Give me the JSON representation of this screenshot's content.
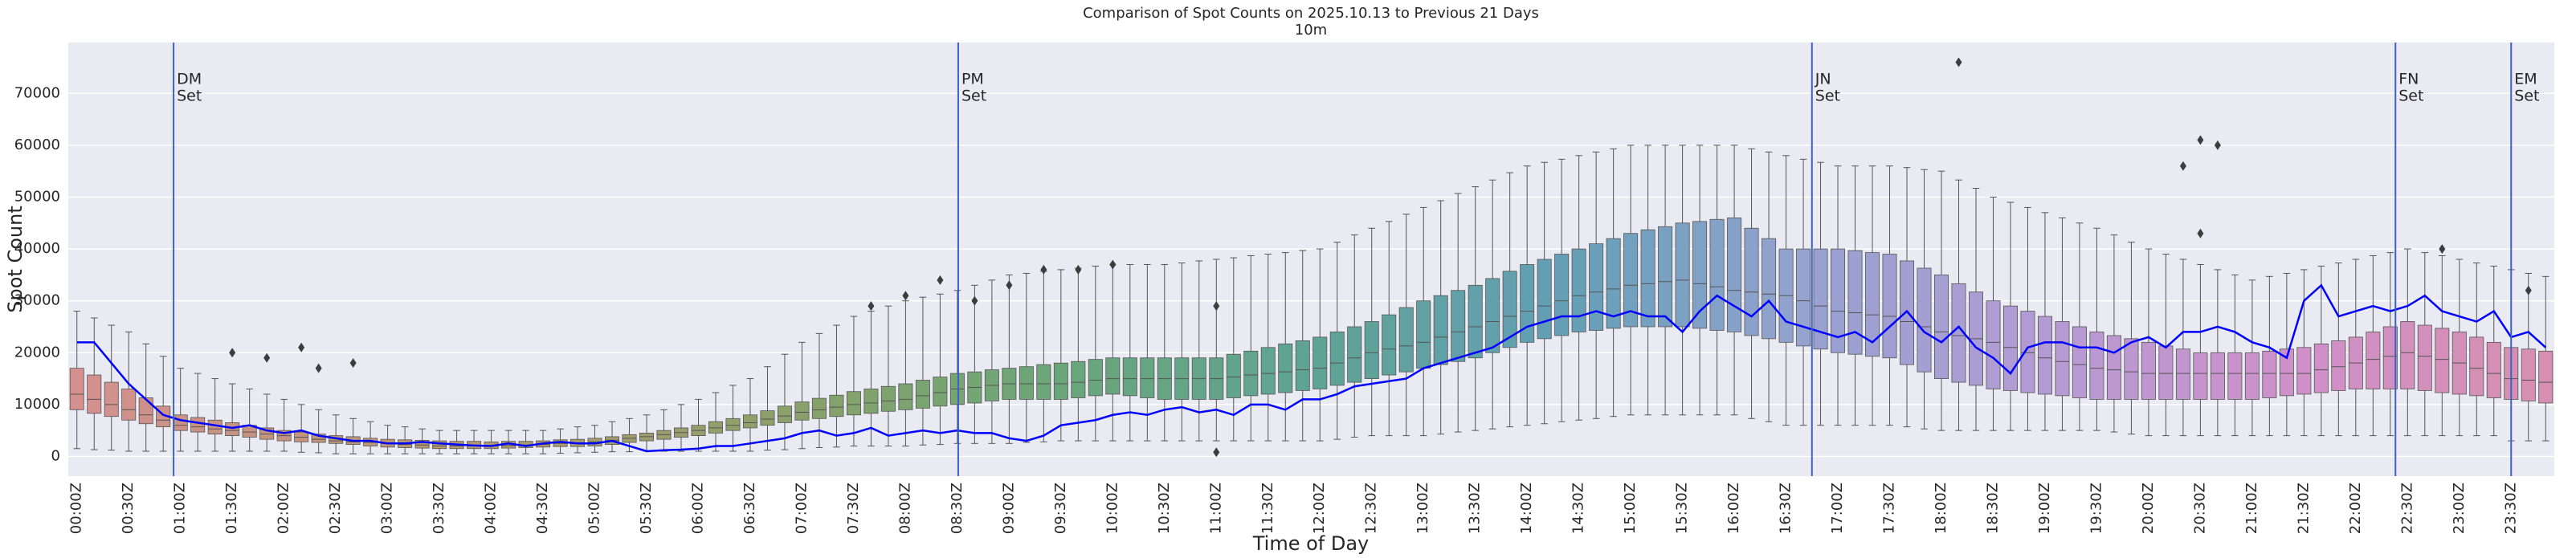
{
  "chart_data": {
    "type": "box",
    "title": "Comparison of Spot Counts on 2025.10.13 to Previous 21 Days",
    "subtitle": "10m",
    "x_label": "Time of Day",
    "y_label": "Spot Count",
    "categories": [
      "00:00Z",
      null,
      null,
      "00:30Z",
      null,
      null,
      "01:00Z",
      null,
      null,
      "01:30Z",
      null,
      null,
      "02:00Z",
      null,
      null,
      "02:30Z",
      null,
      null,
      "03:00Z",
      null,
      null,
      "03:30Z",
      null,
      null,
      "04:00Z",
      null,
      null,
      "04:30Z",
      null,
      null,
      "05:00Z",
      null,
      null,
      "05:30Z",
      null,
      null,
      "06:00Z",
      null,
      null,
      "06:30Z",
      null,
      null,
      "07:00Z",
      null,
      null,
      "07:30Z",
      null,
      null,
      "08:00Z",
      null,
      null,
      "08:30Z",
      null,
      null,
      "09:00Z",
      null,
      null,
      "09:30Z",
      null,
      null,
      "10:00Z",
      null,
      null,
      "10:30Z",
      null,
      null,
      "11:00Z",
      null,
      null,
      "11:30Z",
      null,
      null,
      "12:00Z",
      null,
      null,
      "12:30Z",
      null,
      null,
      "13:00Z",
      null,
      null,
      "13:30Z",
      null,
      null,
      "14:00Z",
      null,
      null,
      "14:30Z",
      null,
      null,
      "15:00Z",
      null,
      null,
      "15:30Z",
      null,
      null,
      "16:00Z",
      null,
      null,
      "16:30Z",
      null,
      null,
      "17:00Z",
      null,
      null,
      "17:30Z",
      null,
      null,
      "18:00Z",
      null,
      null,
      "18:30Z",
      null,
      null,
      "19:00Z",
      null,
      null,
      "19:30Z",
      null,
      null,
      "20:00Z",
      null,
      null,
      "20:30Z",
      null,
      null,
      "21:00Z",
      null,
      null,
      "21:30Z",
      null,
      null,
      "22:00Z",
      null,
      null,
      "22:30Z",
      null,
      null,
      "23:00Z",
      null,
      null,
      "23:30Z",
      null,
      null
    ],
    "boxes": {
      "palette": [
        "#d4908f",
        "#c0957a",
        "#a89a6e",
        "#86a26a",
        "#6aa67a",
        "#5fa393",
        "#639fb5",
        "#96a2d0",
        "#b59ad3",
        "#cf90c9",
        "#d68fb0"
      ],
      "whislo": [
        1500,
        1300,
        1200,
        1000,
        1000,
        1000,
        1000,
        1000,
        1000,
        1000,
        1000,
        1000,
        1000,
        800,
        700,
        500,
        500,
        500,
        500,
        500,
        500,
        500,
        500,
        500,
        500,
        500,
        500,
        500,
        600,
        700,
        800,
        900,
        900,
        1000,
        1000,
        1000,
        1000,
        1000,
        1000,
        1000,
        1200,
        1300,
        1500,
        1700,
        1800,
        2000,
        2000,
        2000,
        2000,
        2200,
        2300,
        2500,
        2500,
        2500,
        2500,
        2700,
        2800,
        3000,
        3000,
        3000,
        3000,
        3000,
        3000,
        3000,
        3000,
        3000,
        3000,
        3000,
        3000,
        3000,
        3000,
        3000,
        3000,
        3300,
        3700,
        4000,
        4000,
        4000,
        4000,
        4300,
        4700,
        5000,
        5300,
        5700,
        6000,
        6300,
        6700,
        7000,
        7300,
        7700,
        8000,
        8000,
        8000,
        8000,
        8000,
        8000,
        8000,
        7300,
        6700,
        6000,
        6000,
        6000,
        6000,
        6000,
        6000,
        6000,
        5700,
        5300,
        5000,
        5000,
        5000,
        5000,
        5000,
        5000,
        5000,
        5000,
        5000,
        5000,
        4700,
        4300,
        4000,
        4000,
        4000,
        4000,
        4000,
        4000,
        4000,
        4000,
        4000,
        4000,
        4000,
        4000,
        4000,
        4000,
        4000,
        4000,
        4000,
        4000,
        4000,
        4000,
        4000,
        3000,
        3000,
        3000
      ],
      "q1": [
        9000,
        8300,
        7700,
        7000,
        6300,
        5700,
        5000,
        4700,
        4300,
        4000,
        3700,
        3300,
        3000,
        2800,
        2700,
        2500,
        2300,
        2000,
        1800,
        1700,
        1600,
        1500,
        1500,
        1500,
        1500,
        1600,
        1700,
        1800,
        1900,
        1900,
        2000,
        2300,
        2700,
        3000,
        3300,
        3700,
        4000,
        4500,
        5000,
        5500,
        6000,
        6500,
        7000,
        7300,
        7700,
        8000,
        8300,
        8700,
        9000,
        9300,
        9700,
        10000,
        10300,
        10700,
        11000,
        11000,
        11000,
        11000,
        11300,
        11700,
        12000,
        11700,
        11300,
        11000,
        11000,
        11000,
        11000,
        11300,
        11700,
        12000,
        12300,
        12700,
        13000,
        13700,
        14300,
        15000,
        15700,
        16300,
        17000,
        17700,
        18300,
        19000,
        20000,
        21000,
        22000,
        22700,
        23300,
        24000,
        24300,
        24700,
        25000,
        25000,
        25000,
        25000,
        24700,
        24300,
        24000,
        23300,
        22700,
        22000,
        21300,
        20700,
        20000,
        19700,
        19300,
        19000,
        17700,
        16300,
        15000,
        14300,
        13700,
        13000,
        12700,
        12300,
        12000,
        11700,
        11300,
        11000,
        11000,
        11000,
        11000,
        11000,
        11000,
        11000,
        11000,
        11000,
        11000,
        11300,
        11700,
        12000,
        12300,
        12700,
        13000,
        13000,
        13000,
        13000,
        12700,
        12300,
        12000,
        11700,
        11300,
        11000,
        10700,
        10300
      ],
      "median": [
        12000,
        11000,
        10000,
        9000,
        8000,
        7000,
        6000,
        5700,
        5300,
        5000,
        4700,
        4300,
        4000,
        3700,
        3300,
        3000,
        2800,
        2700,
        2500,
        2300,
        2200,
        2000,
        2000,
        2000,
        2000,
        2100,
        2200,
        2300,
        2500,
        2600,
        2800,
        3100,
        3500,
        3800,
        4200,
        4600,
        5000,
        5500,
        6000,
        6500,
        7200,
        7800,
        8500,
        9000,
        9500,
        10000,
        10300,
        10700,
        11000,
        11700,
        12300,
        13000,
        13300,
        13700,
        14000,
        14000,
        14000,
        14000,
        14300,
        14700,
        15000,
        15000,
        15000,
        15000,
        15000,
        15000,
        15000,
        15300,
        15700,
        16000,
        16300,
        16700,
        17000,
        18000,
        19000,
        20000,
        20700,
        21300,
        22000,
        23000,
        24000,
        25000,
        26000,
        27000,
        28000,
        29000,
        30000,
        31000,
        31700,
        32300,
        33000,
        33300,
        33700,
        34000,
        33300,
        32700,
        32000,
        31700,
        31300,
        31000,
        30000,
        29000,
        28000,
        27700,
        27300,
        27000,
        26000,
        25000,
        24000,
        23300,
        22700,
        22000,
        21000,
        20000,
        19000,
        18300,
        17700,
        17000,
        16700,
        16300,
        16000,
        16000,
        16000,
        16000,
        16000,
        16000,
        16000,
        16000,
        16000,
        16000,
        16700,
        17300,
        18000,
        18700,
        19300,
        20000,
        19300,
        18700,
        18000,
        17000,
        16000,
        15000,
        14700,
        14300
      ],
      "q3": [
        17000,
        15700,
        14300,
        13000,
        11300,
        9700,
        8000,
        7500,
        7000,
        6500,
        6000,
        5500,
        5000,
        4700,
        4300,
        4000,
        3800,
        3500,
        3300,
        3200,
        3100,
        3000,
        2900,
        2900,
        2800,
        2900,
        2900,
        3000,
        3200,
        3300,
        3500,
        3800,
        4200,
        4500,
        5000,
        5500,
        6000,
        6700,
        7300,
        8000,
        8800,
        9700,
        10500,
        11200,
        11800,
        12500,
        13000,
        13500,
        14000,
        14700,
        15300,
        16000,
        16300,
        16700,
        17000,
        17300,
        17700,
        18000,
        18300,
        18700,
        19000,
        19000,
        19000,
        19000,
        19000,
        19000,
        19000,
        19700,
        20300,
        21000,
        21700,
        22300,
        23000,
        24000,
        25000,
        26000,
        27300,
        28700,
        30000,
        31000,
        32000,
        33000,
        34300,
        35700,
        37000,
        38000,
        39000,
        40000,
        41000,
        42000,
        43000,
        43700,
        44300,
        45000,
        45300,
        45700,
        46000,
        44000,
        42000,
        40000,
        40000,
        40000,
        40000,
        39700,
        39300,
        39000,
        37700,
        36300,
        35000,
        33300,
        31700,
        30000,
        29000,
        28000,
        27000,
        26000,
        25000,
        24000,
        23300,
        22700,
        22000,
        21300,
        20700,
        20000,
        20000,
        20000,
        20000,
        20300,
        20700,
        21000,
        21700,
        22300,
        23000,
        24000,
        25000,
        26000,
        25300,
        24700,
        24000,
        23000,
        22000,
        21000,
        20700,
        20300
      ],
      "whishi": [
        28000,
        26700,
        25300,
        24000,
        21700,
        19300,
        17000,
        16000,
        15000,
        14000,
        13000,
        12000,
        11000,
        10000,
        9000,
        8000,
        7300,
        6700,
        6000,
        5700,
        5300,
        5000,
        5000,
        5000,
        5000,
        5000,
        5000,
        5000,
        5300,
        5700,
        6000,
        6700,
        7300,
        8000,
        9000,
        10000,
        11000,
        12300,
        13700,
        15000,
        17300,
        19700,
        22000,
        23700,
        25300,
        27000,
        28000,
        29000,
        30000,
        30700,
        31300,
        32000,
        33000,
        34000,
        35000,
        35300,
        35700,
        36000,
        36300,
        36700,
        37000,
        37000,
        37000,
        37000,
        37300,
        37700,
        38000,
        38300,
        38700,
        39000,
        39300,
        39700,
        40000,
        41300,
        42700,
        44000,
        45300,
        46700,
        48000,
        49300,
        50700,
        52000,
        53300,
        54700,
        56000,
        56700,
        57300,
        58000,
        58700,
        59300,
        60000,
        60000,
        60000,
        60000,
        60000,
        60000,
        60000,
        59300,
        58700,
        58000,
        57300,
        56700,
        56000,
        56000,
        56000,
        56000,
        55700,
        55300,
        55000,
        53300,
        51700,
        50000,
        49000,
        48000,
        47000,
        46000,
        45000,
        44000,
        42700,
        41300,
        40000,
        39000,
        38000,
        37000,
        36000,
        35000,
        34000,
        34700,
        35300,
        36000,
        36700,
        37300,
        38000,
        38700,
        39300,
        40000,
        39300,
        38700,
        38000,
        37300,
        36700,
        36000,
        35300,
        34700
      ],
      "outliers": [
        {
          "x": 9,
          "y": 20000
        },
        {
          "x": 11,
          "y": 19000
        },
        {
          "x": 13,
          "y": 21000
        },
        {
          "x": 14,
          "y": 17000
        },
        {
          "x": 16,
          "y": 18000
        },
        {
          "x": 46,
          "y": 29000
        },
        {
          "x": 48,
          "y": 31000
        },
        {
          "x": 50,
          "y": 34000
        },
        {
          "x": 52,
          "y": 30000
        },
        {
          "x": 54,
          "y": 33000
        },
        {
          "x": 56,
          "y": 36000
        },
        {
          "x": 58,
          "y": 36000
        },
        {
          "x": 60,
          "y": 37000
        },
        {
          "x": 66,
          "y": 29000
        },
        {
          "x": 66,
          "y": 800
        },
        {
          "x": 109,
          "y": 76000
        },
        {
          "x": 122,
          "y": 56000
        },
        {
          "x": 123,
          "y": 43000
        },
        {
          "x": 123,
          "y": 61000
        },
        {
          "x": 124,
          "y": 60000
        },
        {
          "x": 137,
          "y": 40000
        },
        {
          "x": 142,
          "y": 32000
        }
      ]
    },
    "line": {
      "color": "#0000ff",
      "values": [
        22000,
        22000,
        18000,
        14000,
        11000,
        8000,
        7000,
        6500,
        6000,
        5500,
        6000,
        5000,
        4500,
        5000,
        4000,
        3500,
        3000,
        3000,
        2500,
        2500,
        2800,
        2500,
        2300,
        2100,
        2000,
        2500,
        2000,
        2500,
        2800,
        2500,
        2500,
        3000,
        2000,
        1000,
        1200,
        1300,
        1500,
        2000,
        2000,
        2500,
        3000,
        3500,
        4500,
        5000,
        4000,
        4500,
        5500,
        4000,
        4500,
        5000,
        4500,
        5000,
        4500,
        4500,
        3500,
        3000,
        4000,
        6000,
        6500,
        7000,
        8000,
        8500,
        8000,
        9000,
        9500,
        8500,
        9000,
        8000,
        10000,
        10000,
        9000,
        11000,
        11000,
        12000,
        13500,
        14000,
        14500,
        15000,
        17000,
        18000,
        19000,
        20000,
        21000,
        23000,
        25000,
        26000,
        27000,
        27000,
        28000,
        27000,
        28000,
        27000,
        27000,
        24000,
        28000,
        31000,
        29000,
        27000,
        30000,
        26000,
        25000,
        24000,
        23000,
        24000,
        22000,
        25000,
        28000,
        24000,
        22000,
        25000,
        21000,
        19000,
        16000,
        21000,
        22000,
        22000,
        21000,
        21000,
        20000,
        22000,
        23000,
        21000,
        24000,
        24000,
        25000,
        24000,
        22000,
        21000,
        19000,
        30000,
        33000,
        27000,
        28000,
        29000,
        28000,
        29000,
        31000,
        28000,
        27000,
        26000,
        28000,
        23000,
        24000,
        21000
      ]
    },
    "events": [
      {
        "x": 5.6,
        "label": [
          "DM",
          "Set"
        ]
      },
      {
        "x": 51.05,
        "label": [
          "PM",
          "Set"
        ]
      },
      {
        "x": 100.5,
        "label": [
          "JN",
          "Set"
        ]
      },
      {
        "x": 134.3,
        "label": [
          "FN",
          "Set"
        ]
      },
      {
        "x": 141.0,
        "label": [
          "EM",
          "Set"
        ]
      }
    ],
    "event_color": "#3a62c4",
    "ylim": [
      -3800,
      79800
    ],
    "yticks": [
      0,
      10000,
      20000,
      30000,
      40000,
      50000,
      60000,
      70000
    ],
    "grid": true
  }
}
